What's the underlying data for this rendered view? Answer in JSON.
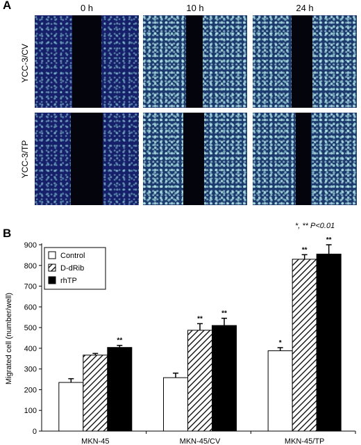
{
  "figure": {
    "panel_a": "A",
    "panel_b": "B",
    "time_labels": [
      "0 h",
      "10 h",
      "24 h"
    ],
    "row_labels": [
      "YCC-3/CV",
      "YCC-3/TP"
    ]
  },
  "chart_data": {
    "type": "bar",
    "categories": [
      "MKN-45",
      "MKN-45/CV",
      "MKN-45/TP"
    ],
    "series": [
      {
        "name": "Control",
        "values": [
          235,
          258,
          388
        ],
        "errors": [
          18,
          22,
          15
        ],
        "sig": [
          "",
          "",
          "*"
        ],
        "fill": "white"
      },
      {
        "name": "D-dRib",
        "values": [
          367,
          487,
          830
        ],
        "errors": [
          8,
          32,
          22
        ],
        "sig": [
          "",
          "**",
          "**"
        ],
        "fill": "hatch"
      },
      {
        "name": "rhTP",
        "values": [
          404,
          510,
          855
        ],
        "errors": [
          10,
          35,
          45
        ],
        "sig": [
          "**",
          "**",
          "**"
        ],
        "fill": "black"
      }
    ],
    "ylabel": "Migrated cell (number/well)",
    "ylim": [
      0,
      900
    ],
    "yticks": [
      0,
      100,
      200,
      300,
      400,
      500,
      600,
      700,
      800,
      900
    ],
    "annotation": "*, ** P<0.01",
    "legend_position": "top-left",
    "grid": false
  }
}
